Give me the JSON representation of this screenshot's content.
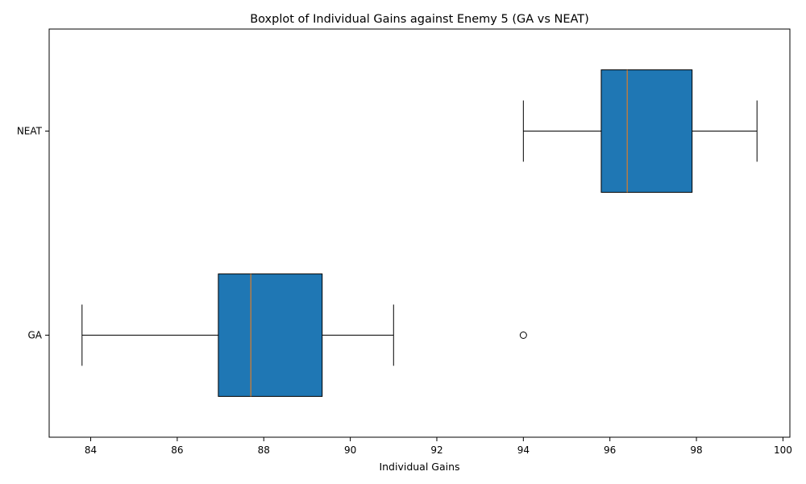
{
  "chart_data": {
    "type": "boxplot",
    "orientation": "horizontal",
    "title": "Boxplot of Individual Gains against Enemy 5 (GA vs NEAT)",
    "xlabel": "Individual Gains",
    "ylabel": "",
    "xlim": [
      83.04,
      100.16
    ],
    "xticks": [
      84,
      86,
      88,
      90,
      92,
      94,
      96,
      98,
      100
    ],
    "categories": [
      "GA",
      "NEAT"
    ],
    "boxes": [
      {
        "category": "GA",
        "whisker_low": 83.8,
        "q1": 86.95,
        "median": 87.7,
        "q3": 89.35,
        "whisker_high": 91.0,
        "outliers": [
          94.0
        ]
      },
      {
        "category": "NEAT",
        "whisker_low": 94.0,
        "q1": 95.8,
        "median": 96.4,
        "q3": 97.9,
        "whisker_high": 99.4,
        "outliers": []
      }
    ],
    "box_color": "#1f77b4",
    "median_color": "#ff7f0e",
    "grid": false,
    "legend": "none"
  }
}
